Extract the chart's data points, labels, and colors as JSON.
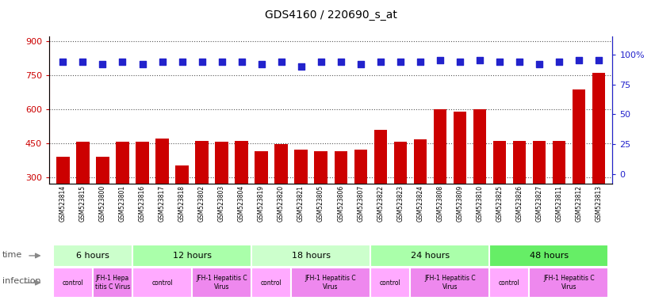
{
  "title": "GDS4160 / 220690_s_at",
  "samples": [
    "GSM523814",
    "GSM523815",
    "GSM523800",
    "GSM523801",
    "GSM523816",
    "GSM523817",
    "GSM523818",
    "GSM523802",
    "GSM523803",
    "GSM523804",
    "GSM523819",
    "GSM523820",
    "GSM523821",
    "GSM523805",
    "GSM523806",
    "GSM523807",
    "GSM523822",
    "GSM523823",
    "GSM523824",
    "GSM523808",
    "GSM523809",
    "GSM523810",
    "GSM523825",
    "GSM523826",
    "GSM523827",
    "GSM523811",
    "GSM523812",
    "GSM523813"
  ],
  "counts": [
    390,
    455,
    390,
    455,
    456,
    470,
    350,
    460,
    455,
    460,
    415,
    445,
    420,
    415,
    415,
    420,
    510,
    455,
    465,
    600,
    590,
    600,
    460,
    460,
    460,
    460,
    688,
    760
  ],
  "percentile_ranks": [
    94,
    94,
    92,
    94,
    92,
    94,
    94,
    94,
    94,
    94,
    92,
    94,
    90,
    94,
    94,
    92,
    94,
    94,
    94,
    95,
    94,
    95,
    94,
    94,
    92,
    94,
    95,
    95
  ],
  "bar_color": "#cc0000",
  "dot_color": "#2222cc",
  "ylim_left": [
    270,
    920
  ],
  "ylim_right": [
    -8,
    115
  ],
  "yticks_left": [
    300,
    450,
    600,
    750,
    900
  ],
  "yticks_right": [
    0,
    25,
    50,
    75,
    100
  ],
  "time_groups": [
    {
      "label": "6 hours",
      "start": 0,
      "end": 4,
      "color": "#ccffcc"
    },
    {
      "label": "12 hours",
      "start": 4,
      "end": 10,
      "color": "#aaffaa"
    },
    {
      "label": "18 hours",
      "start": 10,
      "end": 16,
      "color": "#ccffcc"
    },
    {
      "label": "24 hours",
      "start": 16,
      "end": 22,
      "color": "#aaffaa"
    },
    {
      "label": "48 hours",
      "start": 22,
      "end": 28,
      "color": "#66ee66"
    }
  ],
  "infection_groups": [
    {
      "label": "control",
      "start": 0,
      "end": 2,
      "color": "#ffaaff"
    },
    {
      "label": "JFH-1 Hepa\ntitis C Virus",
      "start": 2,
      "end": 4,
      "color": "#ee88ee"
    },
    {
      "label": "control",
      "start": 4,
      "end": 7,
      "color": "#ffaaff"
    },
    {
      "label": "JFH-1 Hepatitis C\nVirus",
      "start": 7,
      "end": 10,
      "color": "#ee88ee"
    },
    {
      "label": "control",
      "start": 10,
      "end": 12,
      "color": "#ffaaff"
    },
    {
      "label": "JFH-1 Hepatitis C\nVirus",
      "start": 12,
      "end": 16,
      "color": "#ee88ee"
    },
    {
      "label": "control",
      "start": 16,
      "end": 18,
      "color": "#ffaaff"
    },
    {
      "label": "JFH-1 Hepatitis C\nVirus",
      "start": 18,
      "end": 22,
      "color": "#ee88ee"
    },
    {
      "label": "control",
      "start": 22,
      "end": 24,
      "color": "#ffaaff"
    },
    {
      "label": "JFH-1 Hepatitis C\nVirus",
      "start": 24,
      "end": 28,
      "color": "#ee88ee"
    }
  ],
  "bg_color": "#ffffff",
  "xtick_bg": "#dddddd"
}
